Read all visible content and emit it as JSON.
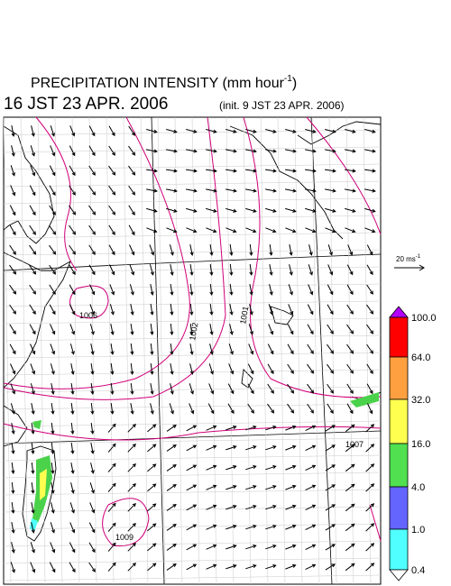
{
  "header": {
    "title": "PRECIPITATION INTENSITY (mm hour",
    "title_exponent": "-1",
    "title_close": ")",
    "valid_time": "16 JST 23 APR. 2006",
    "init_time": "(init. 9 JST 23 APR. 2006)"
  },
  "wind_scale": {
    "label": "20 ms",
    "exponent": "-1"
  },
  "colorbar": {
    "labels": [
      "100.0",
      "64.0",
      "32.0",
      "16.0",
      "4.0",
      "1.0",
      "0.4"
    ]
  },
  "map": {
    "isobar_labels": [
      "1006",
      "1002",
      "1001",
      "1007",
      "1009"
    ]
  }
}
